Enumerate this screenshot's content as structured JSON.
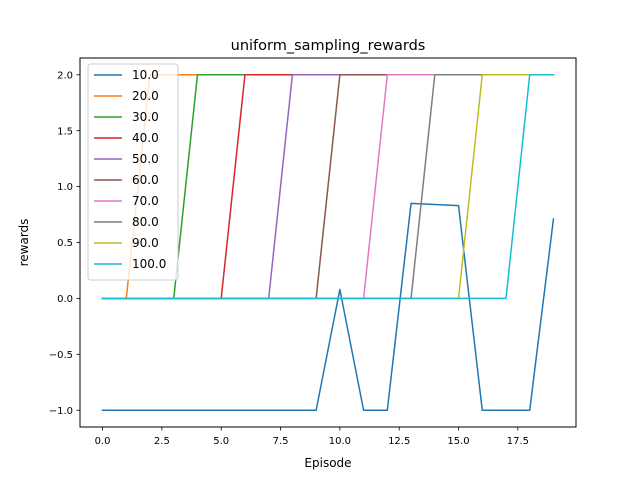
{
  "chart_data": {
    "type": "line",
    "title": "uniform_sampling_rewards",
    "xlabel": "Episode",
    "ylabel": "rewards",
    "xlim": [
      -0.95,
      19.95
    ],
    "ylim": [
      -1.15,
      2.15
    ],
    "x_ticks": [
      0.0,
      2.5,
      5.0,
      7.5,
      10.0,
      12.5,
      15.0,
      17.5
    ],
    "x_tick_labels": [
      "0.0",
      "2.5",
      "5.0",
      "7.5",
      "10.0",
      "12.5",
      "15.0",
      "17.5"
    ],
    "y_ticks": [
      -1.0,
      -0.5,
      0.0,
      0.5,
      1.0,
      1.5,
      2.0
    ],
    "y_tick_labels": [
      "−1.0",
      "−0.5",
      "0.0",
      "0.5",
      "1.0",
      "1.5",
      "2.0"
    ],
    "x": [
      0,
      1,
      2,
      3,
      4,
      5,
      6,
      7,
      8,
      9,
      10,
      11,
      12,
      13,
      14,
      15,
      16,
      17,
      18,
      19
    ],
    "grid": false,
    "legend_position": "top-left",
    "series": [
      {
        "name": "10.0",
        "color": "#1f77b4",
        "values": [
          -1,
          -1,
          -1,
          -1,
          -1,
          -1,
          -1,
          -1,
          -1,
          -1,
          0.08,
          -1,
          -1,
          0.85,
          0.84,
          0.83,
          -1,
          -1,
          -1,
          0.71
        ]
      },
      {
        "name": "20.0",
        "color": "#ff7f0e",
        "values": [
          0,
          0,
          2,
          2,
          2,
          2,
          2,
          2,
          2,
          2,
          2,
          2,
          2,
          2,
          2,
          2,
          2,
          2,
          2,
          2
        ]
      },
      {
        "name": "30.0",
        "color": "#2ca02c",
        "values": [
          0,
          0,
          0,
          0,
          2,
          2,
          2,
          2,
          2,
          2,
          2,
          2,
          2,
          2,
          2,
          2,
          2,
          2,
          2,
          2
        ]
      },
      {
        "name": "40.0",
        "color": "#d62728",
        "values": [
          0,
          0,
          0,
          0,
          0,
          0,
          2,
          2,
          2,
          2,
          2,
          2,
          2,
          2,
          2,
          2,
          2,
          2,
          2,
          2
        ]
      },
      {
        "name": "50.0",
        "color": "#9467bd",
        "values": [
          0,
          0,
          0,
          0,
          0,
          0,
          0,
          0,
          2,
          2,
          2,
          2,
          2,
          2,
          2,
          2,
          2,
          2,
          2,
          2
        ]
      },
      {
        "name": "60.0",
        "color": "#8c564b",
        "values": [
          0,
          0,
          0,
          0,
          0,
          0,
          0,
          0,
          0,
          0,
          2,
          2,
          2,
          2,
          2,
          2,
          2,
          2,
          2,
          2
        ]
      },
      {
        "name": "70.0",
        "color": "#e377c2",
        "values": [
          0,
          0,
          0,
          0,
          0,
          0,
          0,
          0,
          0,
          0,
          0,
          0,
          2,
          2,
          2,
          2,
          2,
          2,
          2,
          2
        ]
      },
      {
        "name": "80.0",
        "color": "#7f7f7f",
        "values": [
          0,
          0,
          0,
          0,
          0,
          0,
          0,
          0,
          0,
          0,
          0,
          0,
          0,
          0,
          2,
          2,
          2,
          2,
          2,
          2
        ]
      },
      {
        "name": "90.0",
        "color": "#bcbd22",
        "values": [
          0,
          0,
          0,
          0,
          0,
          0,
          0,
          0,
          0,
          0,
          0,
          0,
          0,
          0,
          0,
          0,
          2,
          2,
          2,
          2
        ]
      },
      {
        "name": "100.0",
        "color": "#17becf",
        "values": [
          0,
          0,
          0,
          0,
          0,
          0,
          0,
          0,
          0,
          0,
          0,
          0,
          0,
          0,
          0,
          0,
          0,
          0,
          2,
          2
        ]
      }
    ]
  }
}
